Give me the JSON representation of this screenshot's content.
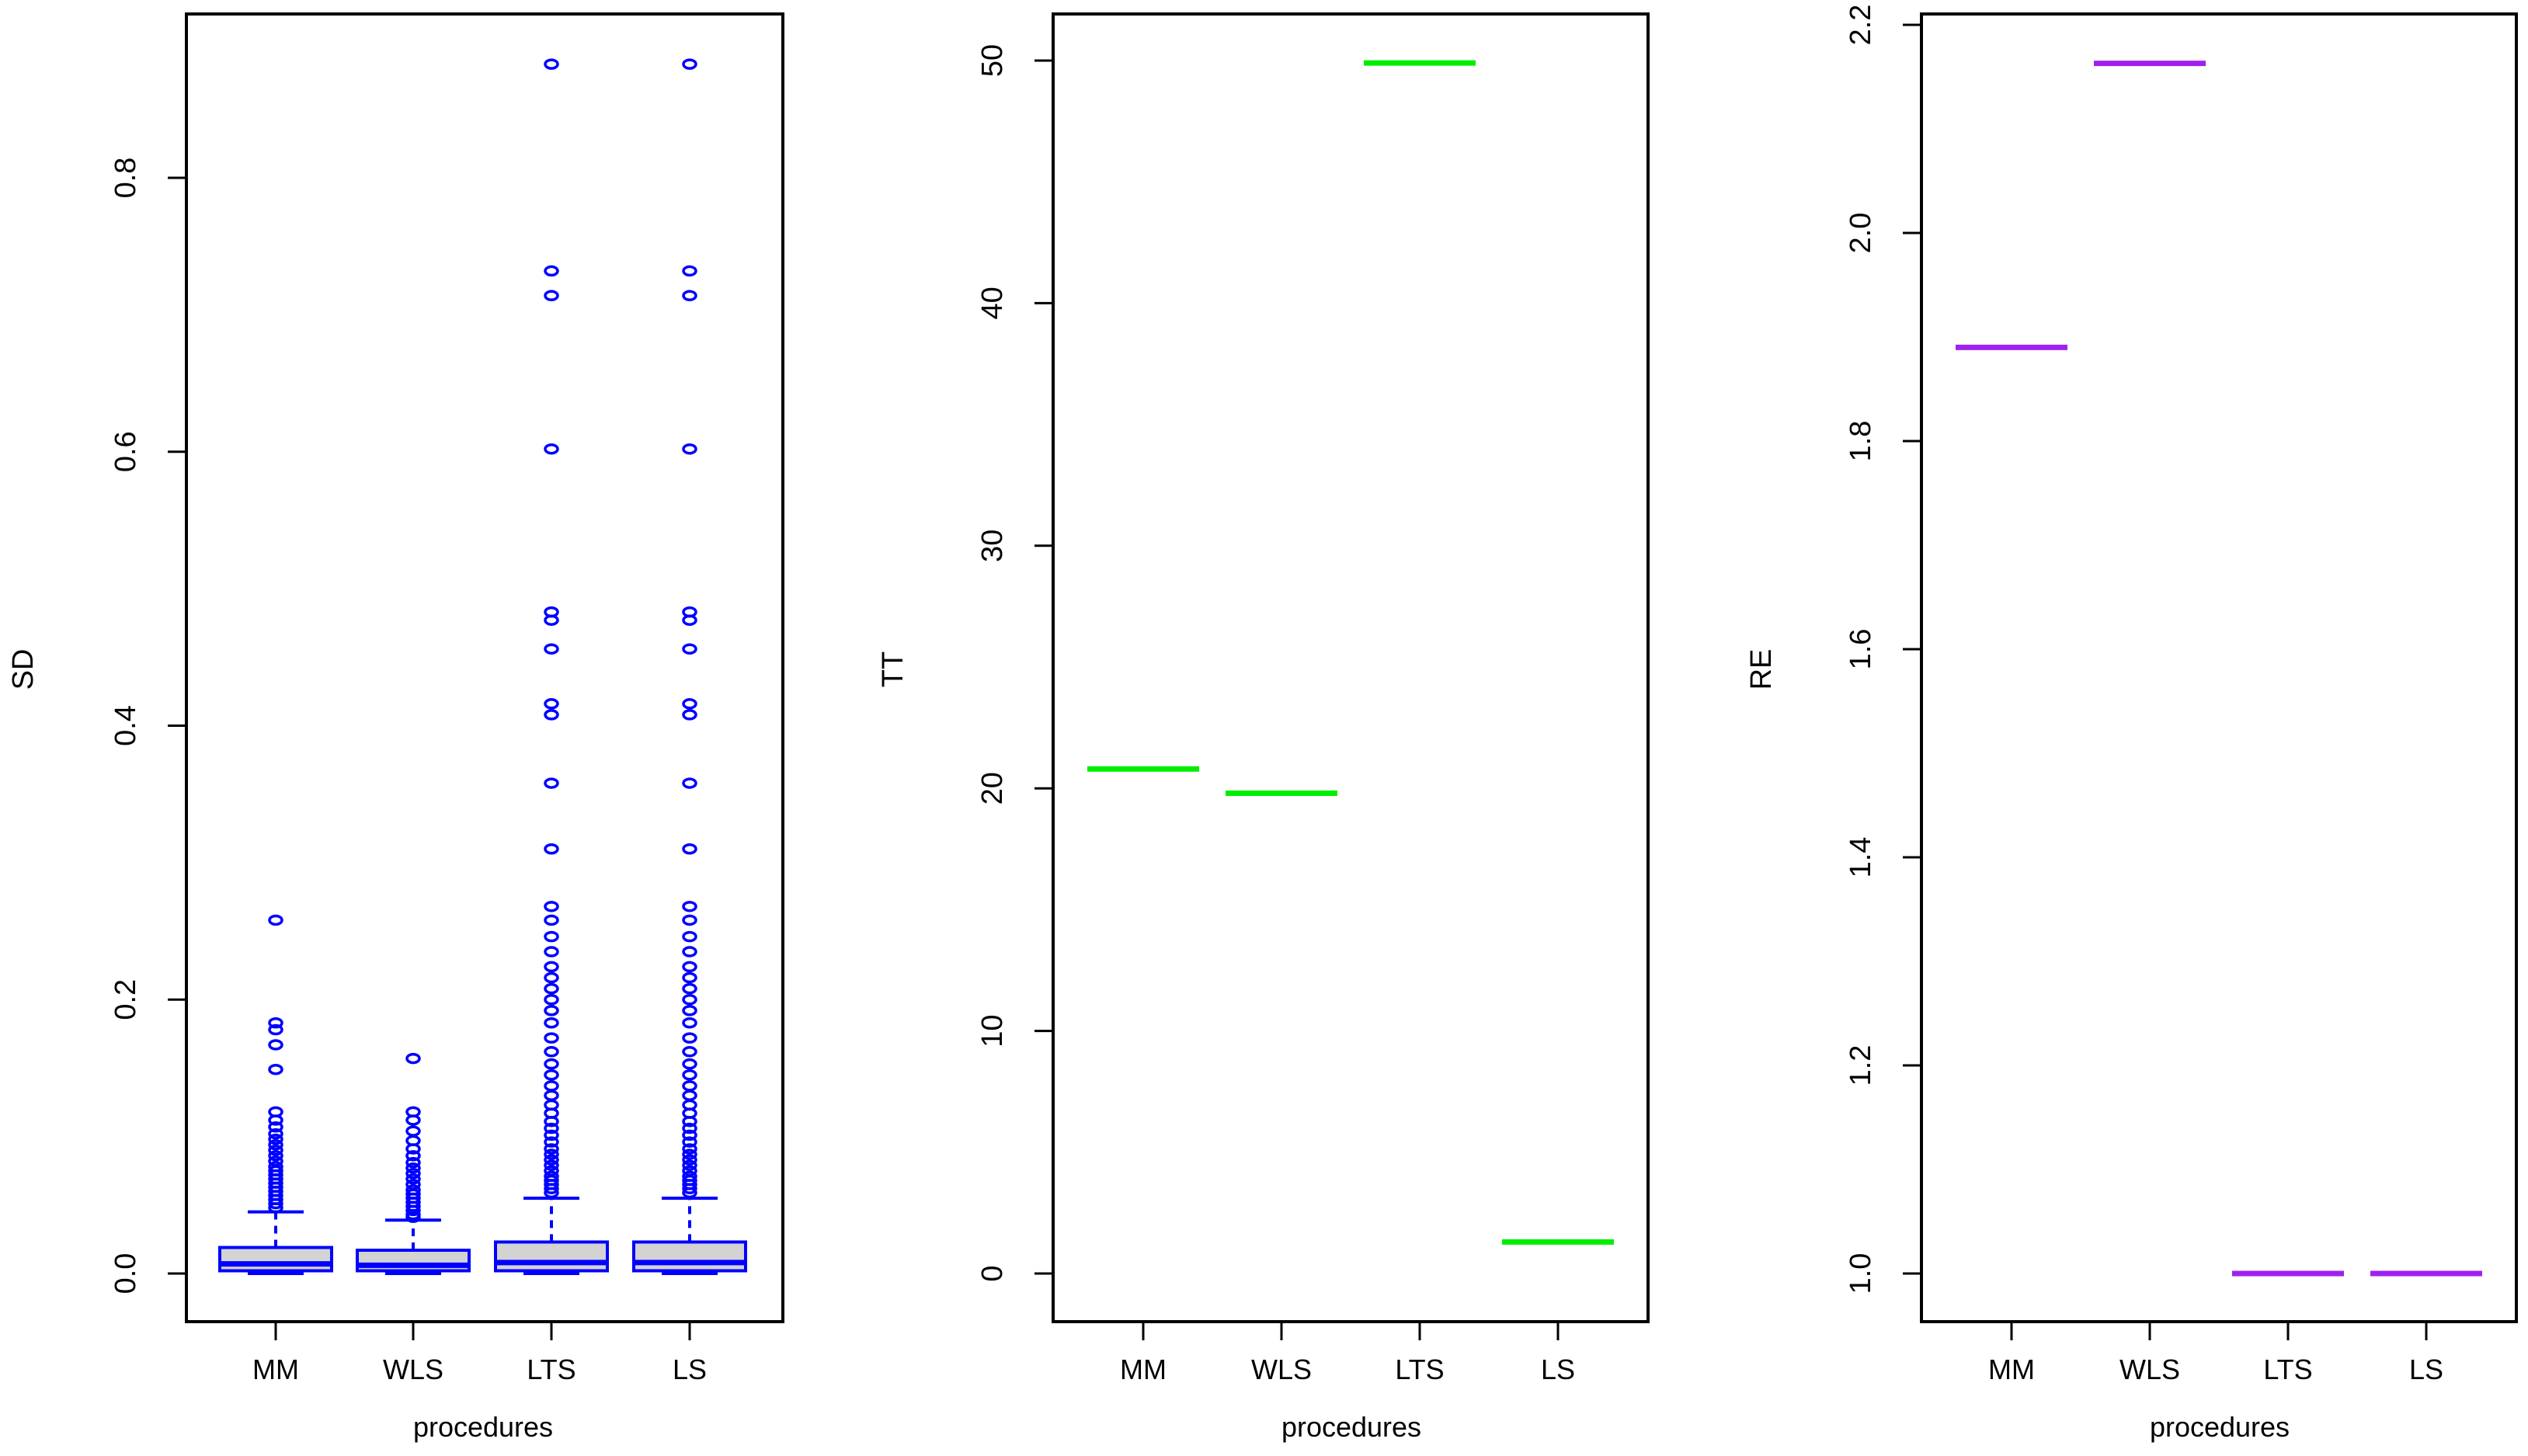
{
  "chart_data": [
    {
      "type": "boxplot",
      "ylabel": "SD",
      "xlabel": "procedures",
      "categories": [
        "MM",
        "WLS",
        "LTS",
        "LS"
      ],
      "ylim": [
        0,
        0.9
      ],
      "yticks": [
        0.0,
        0.2,
        0.4,
        0.6,
        0.8
      ],
      "ytick_labels": [
        "0.0",
        "0.2",
        "0.4",
        "0.6",
        "0.8"
      ],
      "color": "#0000ff",
      "box_fill": "#d3d3d3",
      "boxes": [
        {
          "name": "MM",
          "lower_whisker": 0.0,
          "q1": 0.002,
          "median": 0.007,
          "q3": 0.019,
          "upper_whisker": 0.045,
          "outliers": [
            0.258,
            0.183,
            0.178,
            0.167,
            0.149,
            0.118,
            0.112,
            0.107,
            0.102,
            0.098,
            0.094,
            0.09,
            0.086,
            0.082,
            0.078,
            0.075,
            0.072,
            0.069,
            0.066,
            0.063,
            0.06,
            0.057,
            0.054,
            0.051,
            0.048
          ]
        },
        {
          "name": "WLS",
          "lower_whisker": 0.0,
          "q1": 0.002,
          "median": 0.006,
          "q3": 0.017,
          "upper_whisker": 0.039,
          "outliers": [
            0.157,
            0.118,
            0.112,
            0.104,
            0.097,
            0.091,
            0.086,
            0.081,
            0.077,
            0.073,
            0.069,
            0.065,
            0.061,
            0.058,
            0.055,
            0.052,
            0.049,
            0.046,
            0.043,
            0.041
          ]
        },
        {
          "name": "LTS",
          "lower_whisker": 0.0,
          "q1": 0.002,
          "median": 0.008,
          "q3": 0.023,
          "upper_whisker": 0.055,
          "outliers": [
            0.883,
            0.732,
            0.714,
            0.602,
            0.483,
            0.477,
            0.456,
            0.416,
            0.408,
            0.358,
            0.31,
            0.268,
            0.258,
            0.246,
            0.235,
            0.224,
            0.216,
            0.208,
            0.2,
            0.192,
            0.183,
            0.172,
            0.162,
            0.153,
            0.145,
            0.137,
            0.13,
            0.123,
            0.117,
            0.111,
            0.106,
            0.101,
            0.096,
            0.091,
            0.087,
            0.083,
            0.079,
            0.075,
            0.071,
            0.068,
            0.065,
            0.062,
            0.059
          ]
        },
        {
          "name": "LS",
          "lower_whisker": 0.0,
          "q1": 0.002,
          "median": 0.008,
          "q3": 0.023,
          "upper_whisker": 0.055,
          "outliers": [
            0.883,
            0.732,
            0.714,
            0.602,
            0.483,
            0.477,
            0.456,
            0.416,
            0.408,
            0.358,
            0.31,
            0.268,
            0.258,
            0.246,
            0.235,
            0.224,
            0.216,
            0.208,
            0.2,
            0.192,
            0.183,
            0.172,
            0.162,
            0.153,
            0.145,
            0.137,
            0.13,
            0.123,
            0.117,
            0.111,
            0.106,
            0.101,
            0.096,
            0.091,
            0.087,
            0.083,
            0.079,
            0.075,
            0.071,
            0.068,
            0.065,
            0.062,
            0.059
          ]
        }
      ]
    },
    {
      "type": "boxplot",
      "ylabel": "TT",
      "xlabel": "procedures",
      "categories": [
        "MM",
        "WLS",
        "LTS",
        "LS"
      ],
      "ylim": [
        0,
        50
      ],
      "yticks": [
        0,
        10,
        20,
        30,
        40,
        50
      ],
      "ytick_labels": [
        "0",
        "10",
        "20",
        "30",
        "40",
        "50"
      ],
      "color": "#00ee00",
      "values": [
        20.8,
        19.8,
        49.9,
        1.3
      ]
    },
    {
      "type": "boxplot",
      "ylabel": "RE",
      "xlabel": "procedures",
      "categories": [
        "MM",
        "WLS",
        "LTS",
        "LS"
      ],
      "ylim": [
        1.0,
        2.2
      ],
      "yticks": [
        1.0,
        1.2,
        1.4,
        1.6,
        1.8,
        2.0,
        2.2
      ],
      "ytick_labels": [
        "1.0",
        "1.2",
        "1.4",
        "1.6",
        "1.8",
        "2.0",
        "2.2"
      ],
      "color": "#a020f0",
      "values": [
        1.89,
        2.163,
        1.0,
        1.0
      ]
    }
  ]
}
